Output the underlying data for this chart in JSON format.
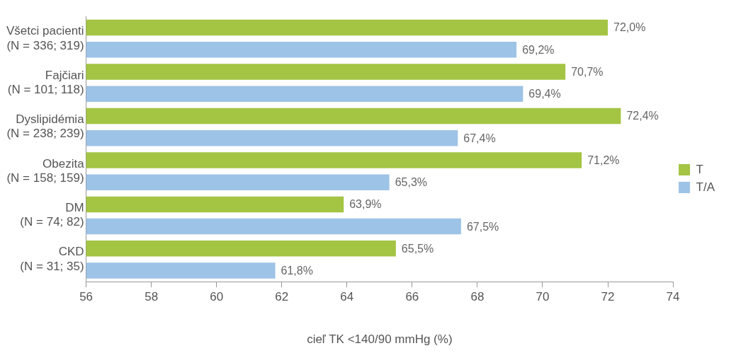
{
  "chart_data": {
    "type": "bar",
    "orientation": "horizontal",
    "xlabel": "cieľ TK <140/90 mmHg (%)",
    "categories": [
      "Všetci pacienti\n(N = 336; 319)",
      "Fajčiari\n(N = 101; 118)",
      "Dyslipidémia\n(N = 238; 239)",
      "Obezita\n(N = 158; 159)",
      "DM\n(N = 74; 82)",
      "CKD\n(N = 31; 35)"
    ],
    "series": [
      {
        "name": "T",
        "color": "#a4c443",
        "values": [
          72.0,
          70.7,
          72.4,
          71.2,
          63.9,
          65.5
        ],
        "value_labels": [
          "72,0%",
          "70,7%",
          "72,4%",
          "71,2%",
          "63,9%",
          "65,5%"
        ]
      },
      {
        "name": "T/A",
        "color": "#9dc3e6",
        "values": [
          69.2,
          69.4,
          67.4,
          65.3,
          67.5,
          61.8
        ],
        "value_labels": [
          "69,2%",
          "69,4%",
          "67,4%",
          "65,3%",
          "67,5%",
          "61,8%"
        ]
      }
    ],
    "xlim": [
      56,
      74
    ],
    "xticks": [
      56,
      58,
      60,
      62,
      64,
      66,
      68,
      70,
      72,
      74
    ],
    "grid": false,
    "legend": "right"
  }
}
